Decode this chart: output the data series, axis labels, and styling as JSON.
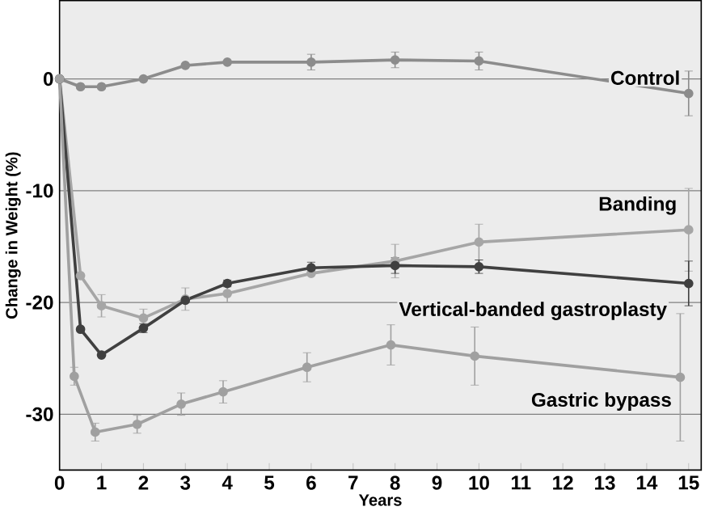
{
  "chart_data": {
    "type": "line",
    "xlabel": "Years",
    "ylabel": "Change in Weight (%)",
    "xlim": [
      0,
      15.3
    ],
    "ylim": [
      -35,
      7
    ],
    "xticks": [
      0,
      1,
      2,
      3,
      4,
      5,
      6,
      7,
      8,
      9,
      10,
      11,
      12,
      13,
      14,
      15
    ],
    "yticks": [
      0,
      -10,
      -20,
      -30
    ],
    "grid": "y",
    "marker": "circle",
    "line_style": "solid",
    "series": [
      {
        "name": "Control",
        "color": "#8c8c8c",
        "x": [
          0,
          0.5,
          1,
          2,
          3,
          4,
          6,
          8,
          10,
          15
        ],
        "values": [
          0,
          -0.7,
          -0.7,
          0,
          1.2,
          1.5,
          1.5,
          1.7,
          1.6,
          -1.3
        ],
        "errors": [
          null,
          null,
          null,
          null,
          null,
          null,
          0.7,
          0.7,
          0.8,
          2
        ]
      },
      {
        "name": "Banding",
        "color": "#a6a6a6",
        "x": [
          0,
          0.5,
          1,
          2,
          3,
          4,
          6,
          8,
          10,
          15
        ],
        "values": [
          0,
          -17.6,
          -20.3,
          -21.4,
          -19.7,
          -19.2,
          -17.4,
          -16.3,
          -14.6,
          -13.5
        ],
        "errors": [
          null,
          null,
          1,
          0.8,
          1,
          0.8,
          null,
          1.5,
          1.6,
          3.7
        ]
      },
      {
        "name": "Vertical-banded gastroplasty",
        "color": "#404040",
        "x": [
          0,
          0.5,
          1,
          2,
          3,
          4,
          6,
          8,
          10,
          15
        ],
        "values": [
          0,
          -22.4,
          -24.7,
          -22.3,
          -19.8,
          -18.3,
          -16.9,
          -16.7,
          -16.8,
          -18.3
        ],
        "errors": [
          null,
          null,
          null,
          0.4,
          null,
          0.3,
          0.5,
          0.7,
          0.6,
          2
        ]
      },
      {
        "name": "Gastric bypass",
        "color": "#a0a0a0",
        "x": [
          0,
          0.35,
          0.85,
          1.85,
          2.9,
          3.9,
          5.9,
          7.9,
          9.9,
          14.8
        ],
        "values": [
          0,
          -26.6,
          -31.6,
          -30.9,
          -29.1,
          -28,
          -25.8,
          -23.8,
          -24.8,
          -26.7
        ],
        "errors": [
          null,
          0.8,
          0.8,
          0.8,
          1,
          1,
          1.3,
          1.8,
          2.6,
          5.7
        ]
      }
    ]
  }
}
